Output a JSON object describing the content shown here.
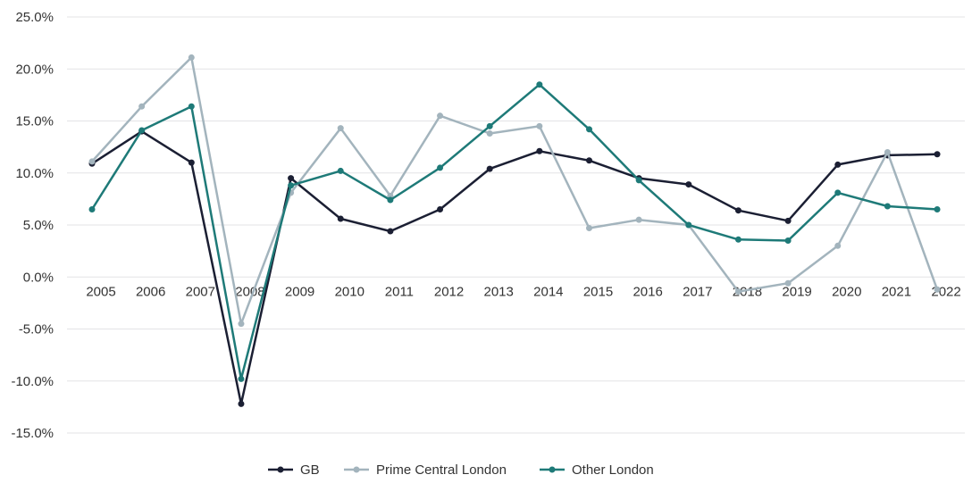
{
  "chart_data": {
    "type": "line",
    "title": "",
    "xlabel": "",
    "ylabel": "",
    "categories": [
      "2005",
      "2006",
      "2007",
      "2008",
      "2009",
      "2010",
      "2011",
      "2012",
      "2013",
      "2014",
      "2015",
      "2016",
      "2017",
      "2018",
      "2019",
      "2020",
      "2021",
      "2022"
    ],
    "y_ticks": [
      "25.0%",
      "20.0%",
      "15.0%",
      "10.0%",
      "5.0%",
      "0.0%",
      "-5.0%",
      "-10.0%",
      "-15.0%"
    ],
    "y_tick_values": [
      25,
      20,
      15,
      10,
      5,
      0,
      -5,
      -10,
      -15
    ],
    "ylim": [
      -15,
      25
    ],
    "grid": true,
    "legend_position": "bottom",
    "series": [
      {
        "name": "GB",
        "color": "#1b1f33",
        "values": [
          10.9,
          14.0,
          11.0,
          -12.2,
          9.5,
          5.6,
          4.4,
          6.5,
          10.4,
          12.1,
          11.2,
          9.5,
          8.9,
          6.4,
          5.4,
          10.8,
          11.7,
          11.8
        ]
      },
      {
        "name": "Prime Central London",
        "color": "#a3b4bd",
        "values": [
          11.1,
          16.4,
          21.1,
          -4.5,
          8.1,
          14.3,
          7.8,
          15.5,
          13.8,
          14.5,
          4.7,
          5.5,
          5.0,
          -1.4,
          -0.6,
          3.0,
          12.0,
          -1.2
        ]
      },
      {
        "name": "Other London",
        "color": "#1e7a78",
        "values": [
          6.5,
          14.1,
          16.4,
          -9.8,
          8.8,
          10.2,
          7.4,
          10.5,
          14.5,
          18.5,
          14.2,
          9.3,
          5.0,
          3.6,
          3.5,
          8.1,
          6.8,
          6.5
        ]
      }
    ]
  }
}
